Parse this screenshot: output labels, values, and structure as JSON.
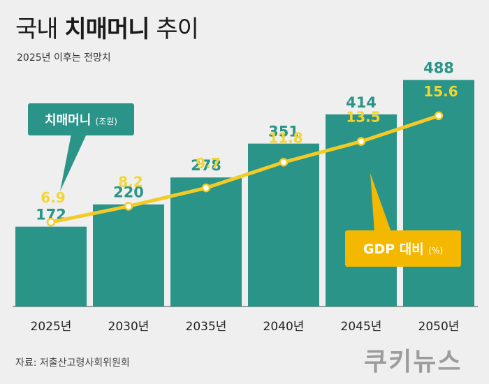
{
  "title_prefix": "국내",
  "title_bold": "치매머니",
  "title_suffix": "추이",
  "subtitle": "2025년 이후는 전망치",
  "source": "자료: 저출산고령사회위원회",
  "brand": "쿠키뉴스",
  "colors": {
    "bar": "#2a9488",
    "line": "#f3cb27",
    "bar_label": "#2a9488",
    "line_label": "#f3d534",
    "callout_bar": "#2a9488",
    "callout_line": "#f5b800"
  },
  "chart_data": {
    "type": "bar",
    "categories": [
      "2025년",
      "2030년",
      "2035년",
      "2040년",
      "2045년",
      "2050년"
    ],
    "series": [
      {
        "name": "치매머니",
        "unit": "(조원)",
        "type": "bar",
        "values": [
          172,
          220,
          278,
          351,
          414,
          488
        ]
      },
      {
        "name": "GDP 대비",
        "unit": "(%)",
        "type": "line",
        "values": [
          6.9,
          8.2,
          9.7,
          11.8,
          13.5,
          15.6
        ]
      }
    ],
    "title": "국내 치매머니 추이",
    "subtitle": "2025년 이후는 전망치",
    "callouts": {
      "bar": {
        "name": "치매머니",
        "unit": "(조원)"
      },
      "line": {
        "name": "GDP 대비",
        "unit": "(%)"
      }
    },
    "bar_ylim": [
      0,
      540
    ],
    "line_ylim": [
      0,
      20.5
    ]
  }
}
